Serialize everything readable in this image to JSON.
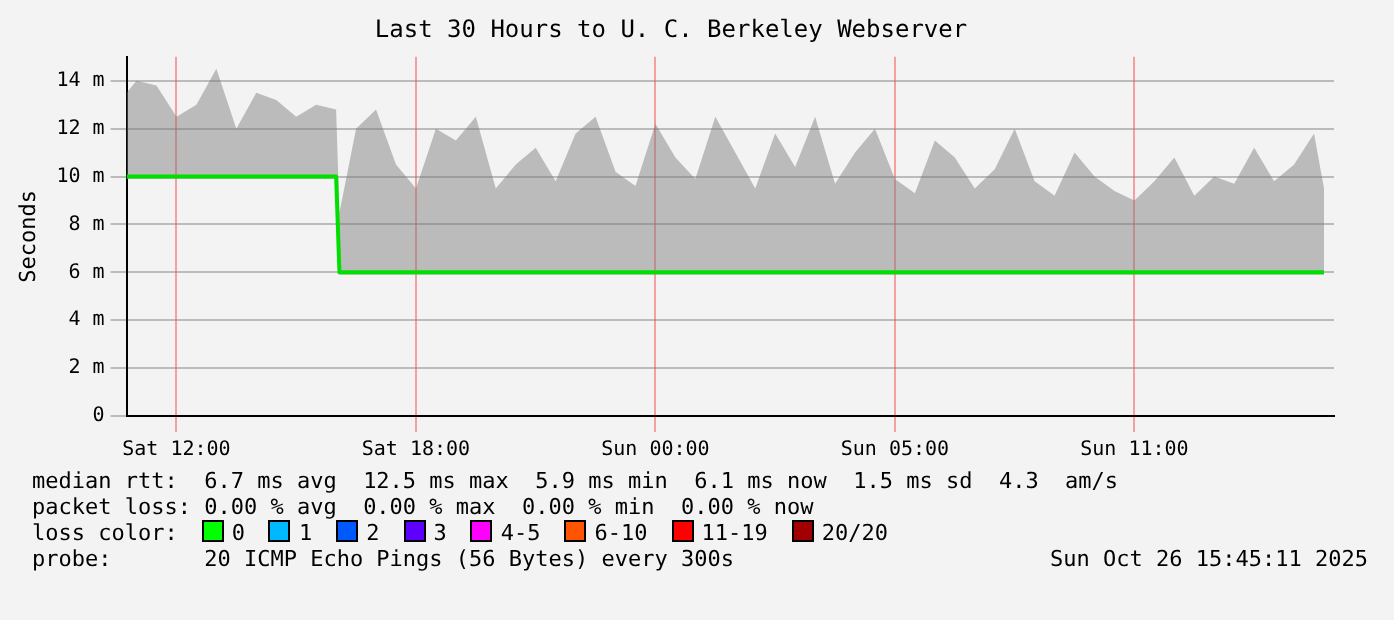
{
  "chart_data": {
    "type": "line",
    "title": "Last 30 Hours to U. C. Berkeley Webserver",
    "ylabel": "Seconds",
    "x": [
      "2025-10-25T08:45",
      "2025-10-25T09:00",
      "2025-10-25T09:30",
      "2025-10-25T10:00",
      "2025-10-25T10:30",
      "2025-10-25T11:00",
      "2025-10-25T11:30",
      "2025-10-25T12:00",
      "2025-10-25T12:30",
      "2025-10-25T13:00",
      "2025-10-25T13:30",
      "2025-10-25T14:00",
      "2025-10-25T14:05",
      "2025-10-25T14:30",
      "2025-10-25T15:00",
      "2025-10-25T15:30",
      "2025-10-25T16:00",
      "2025-10-25T16:30",
      "2025-10-25T17:00",
      "2025-10-25T17:30",
      "2025-10-25T18:00",
      "2025-10-25T18:30",
      "2025-10-25T19:00",
      "2025-10-25T19:30",
      "2025-10-25T20:00",
      "2025-10-25T20:30",
      "2025-10-25T21:00",
      "2025-10-25T21:30",
      "2025-10-25T22:00",
      "2025-10-25T22:30",
      "2025-10-25T23:00",
      "2025-10-25T23:30",
      "2025-10-26T00:00",
      "2025-10-26T00:30",
      "2025-10-26T01:00",
      "2025-10-26T01:30",
      "2025-10-26T02:00",
      "2025-10-26T02:30",
      "2025-10-26T03:00",
      "2025-10-26T03:30",
      "2025-10-26T04:00",
      "2025-10-26T04:30",
      "2025-10-26T05:00",
      "2025-10-26T05:30",
      "2025-10-26T06:00",
      "2025-10-26T06:30",
      "2025-10-26T07:00",
      "2025-10-26T07:30",
      "2025-10-26T08:00",
      "2025-10-26T08:30",
      "2025-10-26T09:00",
      "2025-10-26T09:30",
      "2025-10-26T10:00",
      "2025-10-26T10:30",
      "2025-10-26T11:00",
      "2025-10-26T11:30",
      "2025-10-26T12:00",
      "2025-10-26T12:30",
      "2025-10-26T13:00",
      "2025-10-26T13:30",
      "2025-10-26T14:00",
      "2025-10-26T14:30",
      "2025-10-26T14:45"
    ],
    "series": [
      {
        "color": "#00e000",
        "values": [
          10,
          10,
          10,
          10,
          10,
          10,
          10,
          10,
          10,
          10,
          10,
          10,
          6,
          6,
          6,
          6,
          6,
          6,
          6,
          6,
          6,
          6,
          6,
          6,
          6,
          6,
          6,
          6,
          6,
          6,
          6,
          6,
          6,
          6,
          6,
          6,
          6,
          6,
          6,
          6,
          6,
          6,
          6,
          6,
          6,
          6,
          6,
          6,
          6,
          6,
          6,
          6,
          6,
          6,
          6,
          6,
          6,
          6,
          6,
          6,
          6,
          6,
          6
        ],
        "lower": [
          9.9,
          9.9,
          9.9,
          9.9,
          9.9,
          9.9,
          9.9,
          9.9,
          9.9,
          9.9,
          9.9,
          9.9,
          5.9,
          5.9,
          5.9,
          5.9,
          5.9,
          5.9,
          5.9,
          5.9,
          5.9,
          5.9,
          5.9,
          5.9,
          5.9,
          5.9,
          5.9,
          5.9,
          5.9,
          5.9,
          5.9,
          5.9,
          5.9,
          5.9,
          5.9,
          5.9,
          5.9,
          5.9,
          5.9,
          5.9,
          5.9,
          5.9,
          5.9,
          5.9,
          5.9,
          5.9,
          5.9,
          5.9,
          5.9,
          5.9,
          5.9,
          5.9,
          5.9,
          5.9,
          5.9,
          5.9,
          5.9,
          5.9,
          5.9,
          5.9,
          5.9,
          5.9,
          5.9
        ],
        "upper": [
          13.5,
          14,
          13.8,
          12.5,
          13,
          14.5,
          12,
          13.5,
          13.2,
          12.5,
          13,
          12.8,
          8.5,
          12,
          12.8,
          10.5,
          9.5,
          12,
          11.5,
          12.5,
          9.5,
          10.5,
          11.2,
          9.8,
          11.8,
          12.5,
          10.2,
          9.6,
          12.2,
          10.8,
          9.9,
          12.5,
          11,
          9.5,
          11.8,
          10.4,
          12.5,
          9.7,
          11,
          12,
          9.9,
          9.3,
          11.5,
          10.8,
          9.5,
          10.3,
          12,
          9.8,
          9.2,
          11,
          10,
          9.4,
          9,
          9.8,
          10.8,
          9.2,
          10,
          9.7,
          11.2,
          9.8,
          10.5,
          11.8,
          9.5
        ]
      }
    ],
    "xlim": [
      "2025-10-25T08:45",
      "2025-10-26T15:00"
    ],
    "xticks": [
      {
        "value": "2025-10-25T10:00",
        "label": "Sat 12:00"
      },
      {
        "value": "2025-10-25T16:00",
        "label": "Sat 18:00"
      },
      {
        "value": "2025-10-25T22:00",
        "label": "Sun 00:00"
      },
      {
        "value": "2025-10-26T04:00",
        "label": "Sun 05:00"
      },
      {
        "value": "2025-10-26T10:00",
        "label": "Sun 11:00"
      }
    ],
    "ylim": [
      0,
      15
    ],
    "yticks": [
      {
        "value": 0,
        "label": "0"
      },
      {
        "value": 2,
        "label": "2 m"
      },
      {
        "value": 4,
        "label": "4 m"
      },
      {
        "value": 6,
        "label": "6 m"
      },
      {
        "value": 8,
        "label": "8 m"
      },
      {
        "value": 10,
        "label": "10 m"
      },
      {
        "value": 12,
        "label": "12 m"
      },
      {
        "value": 14,
        "label": "14 m"
      }
    ],
    "grid": true,
    "legend": false,
    "annotations": [
      "median rtt:  6.7 ms avg  12.5 ms max  5.9 ms min  6.1 ms now  1.5 ms sd  4.3  am/s",
      "packet loss: 0.00 % avg  0.00 % max  0.00 % min  0.00 % now",
      "loss color:",
      "0",
      "1",
      "2",
      "3",
      "4-5",
      "6-10",
      "11-19",
      "20/20",
      "probe:       20 ICMP Echo Pings (56 Bytes) every 300s",
      "Sun Oct 26 15:45:11 2025"
    ]
  }
}
